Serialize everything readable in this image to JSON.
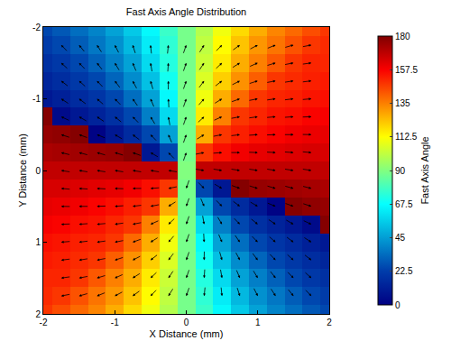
{
  "chart_data": {
    "type": "heatmap",
    "title": "Fast Axis Angle Distribution",
    "x_label": "X Distance (mm)",
    "y_label": "Y Distance (mm)",
    "color": "Jet",
    "x": [
      -2,
      -1.75,
      -1.5,
      -1.25,
      -1,
      -0.75,
      -0.5,
      -0.25,
      0,
      0.25,
      0.5,
      0.75,
      1,
      1.25,
      1.5,
      1.75,
      2
    ],
    "y": [
      -2,
      -1.75,
      -1.5,
      -1.25,
      -1,
      -0.75,
      -0.5,
      -0.25,
      0,
      0.25,
      0.5,
      0.75,
      1,
      1.25,
      1.5,
      1.75,
      2
    ],
    "z": [
      [
        25,
        29,
        34,
        39,
        46,
        55,
        66,
        77,
        88,
        99,
        110,
        119,
        127,
        134,
        139,
        144,
        148
      ],
      [
        22,
        25,
        30,
        36,
        42,
        51,
        63,
        75,
        88,
        101,
        113,
        123,
        131,
        137,
        143,
        148,
        150
      ],
      [
        18,
        21,
        25,
        31,
        38,
        46,
        59,
        73,
        88,
        103,
        116,
        127,
        135,
        142,
        148,
        151,
        151
      ],
      [
        14,
        17,
        21,
        25,
        32,
        41,
        53,
        70,
        88,
        106,
        121,
        132,
        141,
        148,
        150,
        152,
        153
      ],
      [
        9,
        12,
        16,
        20,
        25,
        34,
        46,
        66,
        88,
        110,
        127,
        139,
        148,
        151,
        152,
        154,
        155
      ],
      [
        179,
        4,
        9,
        13,
        18,
        25,
        38,
        59,
        88,
        116,
        135,
        148,
        151,
        154,
        155,
        157,
        158
      ],
      [
        176,
        177,
        179,
        1,
        9,
        16,
        25,
        46,
        88,
        127,
        148,
        152,
        155,
        157,
        159,
        160,
        161
      ],
      [
        172,
        173,
        174,
        175,
        176,
        179,
        9,
        25,
        88,
        148,
        155,
        159,
        161,
        162,
        163,
        164,
        164
      ],
      [
        168,
        168,
        168,
        168,
        168,
        168,
        168,
        168,
        90,
        168,
        168,
        168,
        168,
        168,
        168,
        168,
        168
      ],
      [
        164,
        164,
        163,
        162,
        161,
        159,
        155,
        148,
        88,
        25,
        9,
        179,
        176,
        175,
        174,
        173,
        172
      ],
      [
        161,
        160,
        159,
        157,
        155,
        152,
        148,
        127,
        88,
        46,
        25,
        16,
        9,
        1,
        179,
        177,
        176
      ],
      [
        158,
        157,
        155,
        154,
        151,
        148,
        135,
        116,
        88,
        59,
        38,
        25,
        18,
        13,
        9,
        4,
        179
      ],
      [
        155,
        154,
        152,
        151,
        148,
        139,
        127,
        110,
        88,
        66,
        46,
        34,
        25,
        20,
        16,
        12,
        9
      ],
      [
        153,
        152,
        150,
        148,
        141,
        132,
        121,
        106,
        88,
        70,
        53,
        41,
        32,
        25,
        21,
        17,
        14
      ],
      [
        151,
        151,
        148,
        142,
        135,
        127,
        116,
        103,
        88,
        73,
        59,
        46,
        38,
        31,
        25,
        21,
        18
      ],
      [
        150,
        148,
        143,
        137,
        131,
        123,
        113,
        101,
        88,
        75,
        63,
        51,
        42,
        36,
        30,
        25,
        22
      ],
      [
        148,
        144,
        139,
        134,
        127,
        119,
        110,
        99,
        88,
        77,
        66,
        55,
        46,
        39,
        34,
        29,
        25
      ]
    ],
    "xlim": [
      -2,
      2
    ],
    "ylim": [
      2,
      -2
    ],
    "xticks": [
      -2,
      -1,
      0,
      1,
      2
    ],
    "yticks": [
      -2,
      -1,
      0,
      1,
      2
    ],
    "colorbar": {
      "title": "Fast Axis Angle",
      "range": [
        0,
        180
      ],
      "ticks": [
        0,
        22.5,
        45,
        67.5,
        90,
        112.5,
        135,
        157.5,
        180
      ]
    }
  }
}
